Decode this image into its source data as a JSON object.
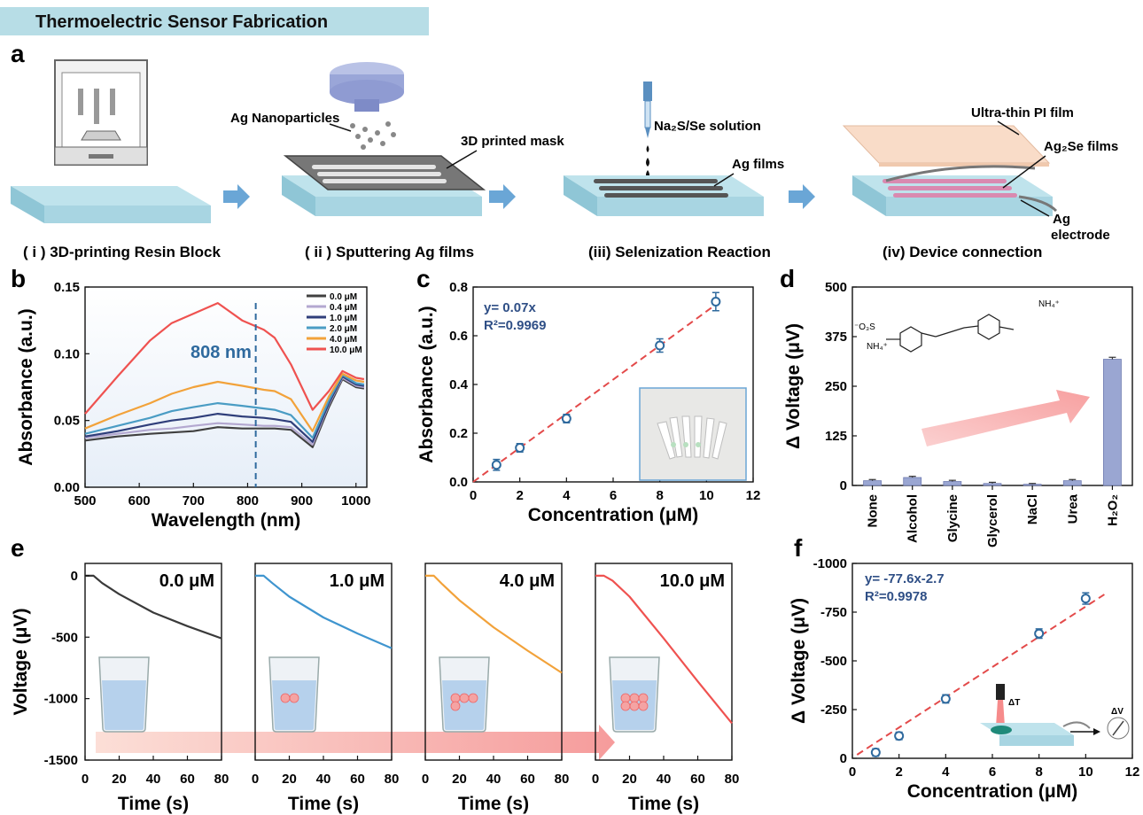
{
  "header": {
    "title": "Thermoelectric Sensor Fabrication"
  },
  "colors": {
    "header_bg": "#b7dde6",
    "substrate": "#a8d5e2",
    "arrow": "#6aa6d6",
    "fit_line": "#e34a4a",
    "blue_text": "#2f4f86"
  },
  "panel_letters": {
    "a": "a",
    "b": "b",
    "c": "c",
    "d": "d",
    "e": "e",
    "f": "f"
  },
  "panel_a": {
    "steps": [
      {
        "label": "( i ) 3D-printing Resin Block"
      },
      {
        "label": "( ii ) Sputtering Ag films"
      },
      {
        "label": "(iii) Selenization Reaction"
      },
      {
        "label": "(iv) Device connection"
      }
    ],
    "annotations": {
      "ag_nanoparticles": "Ag Nanoparticles",
      "printed_mask": "3D printed mask",
      "solution": "Na₂S/Se solution",
      "ag_films": "Ag films",
      "pi_film": "Ultra-thin PI film",
      "ag2se_films": "Ag₂Se films",
      "ag_electrode_1": "Ag",
      "ag_electrode_2": "electrode"
    }
  },
  "chart_data": [
    {
      "panel": "b",
      "type": "line",
      "xlabel": "Wavelength (nm)",
      "ylabel": "Absorbance (a.u.)",
      "xlim": [
        500,
        1020
      ],
      "ylim": [
        0,
        0.15
      ],
      "xticks": [
        "500",
        "600",
        "700",
        "800",
        "900",
        "1000"
      ],
      "yticks": [
        "0.00",
        "0.05",
        "0.10",
        "0.15"
      ],
      "annotation": "808 nm",
      "marker_x": 815,
      "x": [
        500,
        560,
        620,
        660,
        700,
        745,
        790,
        830,
        850,
        880,
        920,
        950,
        975,
        1000,
        1015
      ],
      "series": [
        {
          "name": "0.0 μM",
          "color": "#404040",
          "values": [
            0.035,
            0.038,
            0.04,
            0.041,
            0.042,
            0.045,
            0.044,
            0.044,
            0.044,
            0.043,
            0.03,
            0.06,
            0.081,
            0.075,
            0.074
          ]
        },
        {
          "name": "0.4 μM",
          "color": "#b3a8d0",
          "values": [
            0.037,
            0.04,
            0.043,
            0.044,
            0.046,
            0.048,
            0.047,
            0.046,
            0.046,
            0.045,
            0.032,
            0.062,
            0.082,
            0.076,
            0.075
          ]
        },
        {
          "name": "1.0 μM",
          "color": "#2f3e7a",
          "values": [
            0.038,
            0.042,
            0.047,
            0.05,
            0.052,
            0.055,
            0.053,
            0.052,
            0.051,
            0.049,
            0.034,
            0.063,
            0.083,
            0.077,
            0.076
          ]
        },
        {
          "name": "2.0 μM",
          "color": "#4a9cc4",
          "values": [
            0.04,
            0.046,
            0.052,
            0.057,
            0.06,
            0.063,
            0.061,
            0.059,
            0.058,
            0.054,
            0.037,
            0.065,
            0.084,
            0.078,
            0.077
          ]
        },
        {
          "name": "4.0 μM",
          "color": "#f2a23a",
          "values": [
            0.044,
            0.054,
            0.063,
            0.07,
            0.075,
            0.079,
            0.076,
            0.073,
            0.072,
            0.066,
            0.042,
            0.068,
            0.085,
            0.08,
            0.079
          ]
        },
        {
          "name": "10.0 μM",
          "color": "#ef5250",
          "values": [
            0.055,
            0.083,
            0.11,
            0.123,
            0.13,
            0.138,
            0.125,
            0.118,
            0.112,
            0.092,
            0.058,
            0.072,
            0.087,
            0.082,
            0.081
          ]
        }
      ]
    },
    {
      "panel": "c",
      "type": "scatter",
      "xlabel": "Concentration (μM)",
      "ylabel": "Absorbance (a.u.)",
      "xlim": [
        0,
        12
      ],
      "ylim": [
        0,
        0.8
      ],
      "xticks": [
        "0",
        "2",
        "4",
        "6",
        "8",
        "10",
        "12"
      ],
      "yticks": [
        "0.0",
        "0.2",
        "0.4",
        "0.6",
        "0.8"
      ],
      "equation": "y= 0.07x",
      "r2": "R²=0.9969",
      "fit_slope": 0.07,
      "fit_intercept": 0,
      "x": [
        1.0,
        2.0,
        4.0,
        8.0,
        10.4
      ],
      "y": [
        0.07,
        0.14,
        0.26,
        0.56,
        0.74
      ],
      "err": [
        0.015,
        0.01,
        0.01,
        0.02,
        0.03
      ]
    },
    {
      "panel": "d",
      "type": "bar",
      "ylabel": "Δ Voltage (μV)",
      "ylim": [
        0,
        500
      ],
      "yticks": [
        "0",
        "125",
        "250",
        "375",
        "500"
      ],
      "categories": [
        "None",
        "Alcohol",
        "Glycine",
        "Glycerol",
        "NaCl",
        "Urea",
        "H₂O₂"
      ],
      "values": [
        12,
        20,
        10,
        5,
        3,
        12,
        318
      ],
      "err": [
        3,
        3,
        3,
        3,
        2,
        3,
        5
      ],
      "structure_labels": {
        "nh4_right": "NH₄⁺",
        "nh4_left": "NH₄⁺",
        "sulfonate": "⁻O₃S"
      }
    },
    {
      "panel": "e",
      "type": "line",
      "xlabel": "Time (s)",
      "ylabel": "Voltage (μV)",
      "xlim": [
        0,
        80
      ],
      "ylim": [
        -1500,
        100
      ],
      "xticks": [
        "0",
        "20",
        "40",
        "60",
        "80"
      ],
      "yticks": [
        "0",
        "-500",
        "-1000",
        "-1500"
      ],
      "x": [
        0,
        5,
        10,
        20,
        40,
        60,
        80
      ],
      "series": [
        {
          "name": "0.0 μM",
          "color": "#3a3a3a",
          "values": [
            0,
            0,
            -60,
            -150,
            -300,
            -410,
            -510
          ]
        },
        {
          "name": "1.0 μM",
          "color": "#3f95cf",
          "values": [
            0,
            0,
            -60,
            -170,
            -340,
            -470,
            -590
          ]
        },
        {
          "name": "4.0 μM",
          "color": "#f2a23a",
          "values": [
            0,
            0,
            -70,
            -200,
            -420,
            -610,
            -790
          ]
        },
        {
          "name": "10.0 μM",
          "color": "#ef5250",
          "values": [
            0,
            0,
            -40,
            -170,
            -510,
            -860,
            -1200
          ]
        }
      ]
    },
    {
      "panel": "f",
      "type": "scatter",
      "xlabel": "Concentration (μM)",
      "ylabel": "Δ Voltage (μV)",
      "xlim": [
        0,
        12
      ],
      "ylim": [
        0,
        -1000
      ],
      "xticks": [
        "0",
        "2",
        "4",
        "6",
        "8",
        "10",
        "12"
      ],
      "yticks": [
        "0",
        "-250",
        "-500",
        "-750",
        "-1000"
      ],
      "equation": "y= -77.6x-2.7",
      "r2": "R²=0.9978",
      "fit_slope": -77.6,
      "fit_intercept": -2.7,
      "x": [
        1.0,
        2.0,
        4.0,
        8.0,
        10.0
      ],
      "y": [
        -30,
        -115,
        -305,
        -640,
        -820
      ],
      "err": [
        10,
        10,
        12,
        15,
        20
      ],
      "inset_labels": {
        "dT": "ΔT",
        "dV": "ΔV"
      }
    }
  ]
}
